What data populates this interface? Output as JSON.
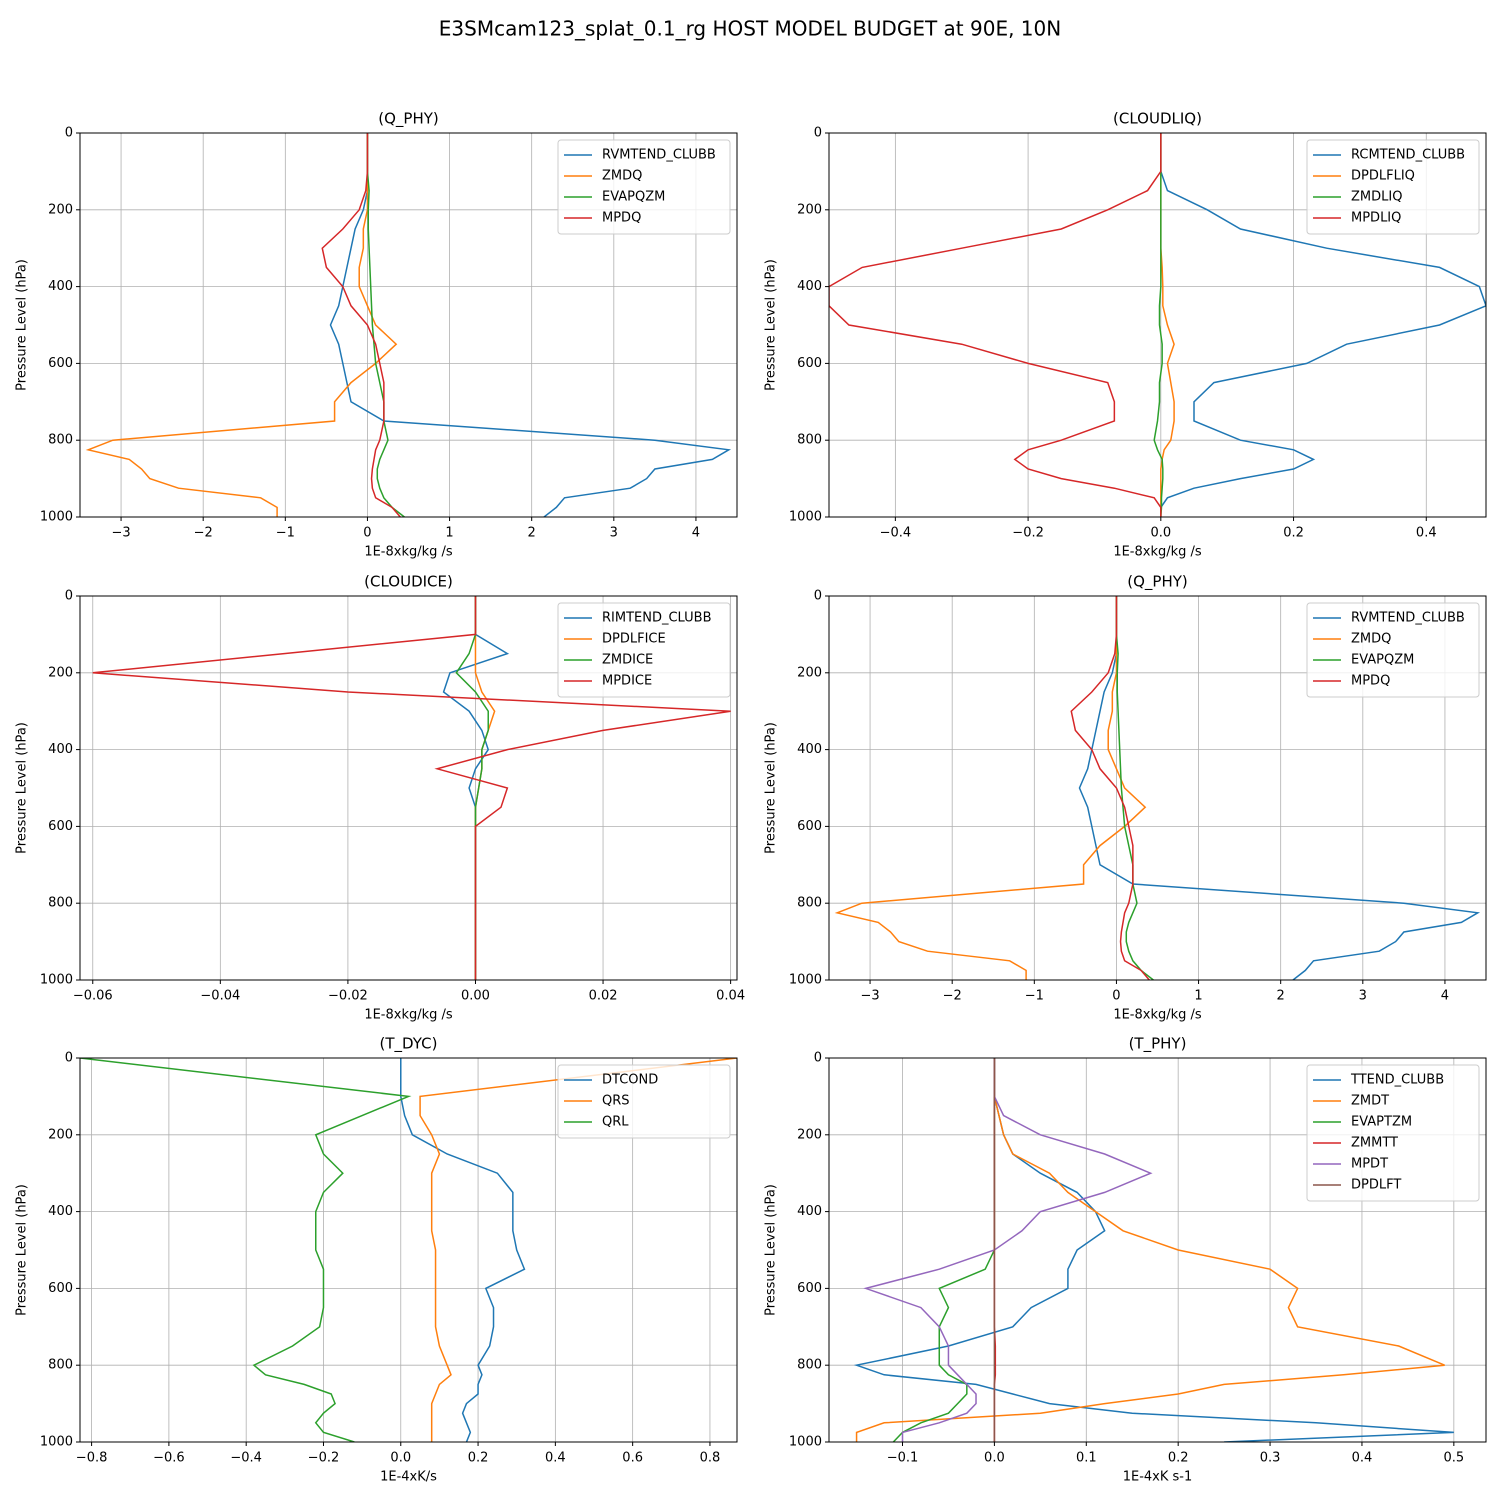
{
  "title": "E3SMcam123_splat_0.1_rg HOST MODEL BUDGET at 90E, 10N",
  "chart_data": [
    {
      "type": "line",
      "title": "(Q_PHY)",
      "xlabel": "1E-8xkg/kg /s",
      "ylabel": "Pressure Level (hPa)",
      "grid": true,
      "legend": "upper right",
      "y": [
        0,
        100,
        150,
        200,
        250,
        300,
        350,
        400,
        450,
        500,
        550,
        600,
        650,
        700,
        750,
        800,
        825,
        850,
        875,
        900,
        925,
        950,
        975,
        1000
      ],
      "ylim": [
        1000,
        0
      ],
      "yticks": [
        0,
        200,
        400,
        600,
        800,
        1000
      ],
      "xlim": [
        -3.5,
        4.5
      ],
      "xticks": [
        {
          "value": -3,
          "label": "−3"
        },
        {
          "value": -2,
          "label": "−2"
        },
        {
          "value": -1,
          "label": "−1"
        },
        0,
        1,
        2,
        3,
        4
      ],
      "series": [
        {
          "name": "RVMTEND_CLUBB",
          "color": "#1f77b4",
          "values": [
            0,
            0,
            0,
            -0.05,
            -0.15,
            -0.2,
            -0.25,
            -0.3,
            -0.35,
            -0.45,
            -0.35,
            -0.3,
            -0.25,
            -0.2,
            0.2,
            3.5,
            4.4,
            4.2,
            3.5,
            3.4,
            3.2,
            2.4,
            2.3,
            2.15
          ]
        },
        {
          "name": "ZMDQ",
          "color": "#ff7f0e",
          "values": [
            0,
            0,
            0,
            0,
            -0.05,
            -0.05,
            -0.1,
            -0.1,
            0,
            0.1,
            0.35,
            0.1,
            -0.2,
            -0.4,
            -0.4,
            -3.1,
            -3.4,
            -2.9,
            -2.75,
            -2.65,
            -2.3,
            -1.3,
            -1.1,
            -1.1
          ]
        },
        {
          "name": "EVAPQZM",
          "color": "#2ca02c",
          "values": [
            0,
            0,
            0.02,
            0.01,
            0.01,
            0.02,
            0.03,
            0.04,
            0.05,
            0.06,
            0.08,
            0.1,
            0.15,
            0.2,
            0.2,
            0.25,
            0.2,
            0.15,
            0.12,
            0.12,
            0.15,
            0.2,
            0.3,
            0.45
          ]
        },
        {
          "name": "MPDQ",
          "color": "#d62728",
          "values": [
            0,
            0,
            -0.02,
            -0.1,
            -0.3,
            -0.55,
            -0.5,
            -0.3,
            -0.2,
            0,
            0.1,
            0.15,
            0.2,
            0.2,
            0.2,
            0.15,
            0.1,
            0.08,
            0.06,
            0.05,
            0.06,
            0.1,
            0.3,
            0.4
          ]
        }
      ]
    },
    {
      "type": "line",
      "title": "(CLOUDLIQ)",
      "xlabel": "1E-8xkg/kg /s",
      "ylabel": "Pressure Level (hPa)",
      "grid": true,
      "legend": "upper right",
      "y": [
        0,
        100,
        150,
        200,
        250,
        300,
        350,
        400,
        450,
        500,
        550,
        600,
        650,
        700,
        750,
        800,
        825,
        850,
        875,
        900,
        925,
        950,
        975,
        1000
      ],
      "ylim": [
        1000,
        0
      ],
      "yticks": [
        0,
        200,
        400,
        600,
        800,
        1000
      ],
      "xlim": [
        -0.5,
        0.49
      ],
      "xticks": [
        {
          "value": -0.4,
          "label": "−0.4"
        },
        {
          "value": -0.2,
          "label": "−0.2"
        },
        {
          "value": 0,
          "label": "0.0"
        },
        0.2,
        0.4
      ],
      "series": [
        {
          "name": "RCMTEND_CLUBB",
          "color": "#1f77b4",
          "values": [
            0,
            0,
            0.01,
            0.07,
            0.12,
            0.25,
            0.42,
            0.48,
            0.49,
            0.42,
            0.28,
            0.22,
            0.08,
            0.05,
            0.05,
            0.12,
            0.2,
            0.23,
            0.2,
            0.12,
            0.05,
            0.01,
            0,
            0
          ]
        },
        {
          "name": "DPDLFLIQ",
          "color": "#ff7f0e",
          "values": [
            0,
            0,
            0,
            0,
            0,
            0,
            0.002,
            0.003,
            0.003,
            0.01,
            0.02,
            0.01,
            0.015,
            0.02,
            0.02,
            0.015,
            0.005,
            0.002,
            0,
            0,
            0,
            0,
            0,
            0
          ]
        },
        {
          "name": "ZMDLIQ",
          "color": "#2ca02c",
          "values": [
            0,
            0,
            0,
            0,
            0,
            0,
            0,
            0,
            -0.002,
            -0.002,
            0.002,
            0.002,
            -0.002,
            -0.002,
            -0.005,
            -0.01,
            -0.005,
            0.002,
            0.003,
            0.003,
            0.002,
            0.001,
            0.001,
            0
          ]
        },
        {
          "name": "MPDLIQ",
          "color": "#d62728",
          "values": [
            0,
            0,
            -0.02,
            -0.08,
            -0.15,
            -0.3,
            -0.45,
            -0.5,
            -0.5,
            -0.47,
            -0.3,
            -0.2,
            -0.08,
            -0.07,
            -0.07,
            -0.15,
            -0.2,
            -0.22,
            -0.2,
            -0.15,
            -0.07,
            -0.01,
            0,
            0
          ]
        }
      ]
    },
    {
      "type": "line",
      "title": "(CLOUDICE)",
      "xlabel": "1E-8xkg/kg /s",
      "ylabel": "Pressure Level (hPa)",
      "grid": true,
      "legend": "upper right",
      "y": [
        0,
        100,
        150,
        200,
        250,
        300,
        350,
        400,
        450,
        500,
        550,
        600,
        650,
        700,
        750,
        800,
        825,
        850,
        875,
        900,
        925,
        950,
        975,
        1000
      ],
      "ylim": [
        1000,
        0
      ],
      "yticks": [
        0,
        200,
        400,
        600,
        800,
        1000
      ],
      "xlim": [
        -0.062,
        0.041
      ],
      "xticks": [
        {
          "value": -0.06,
          "label": "−0.06"
        },
        {
          "value": -0.04,
          "label": "−0.04"
        },
        {
          "value": -0.02,
          "label": "−0.02"
        },
        {
          "value": 0,
          "label": "0.00"
        },
        0.02,
        0.04
      ],
      "series": [
        {
          "name": "RIMTEND_CLUBB",
          "color": "#1f77b4",
          "values": [
            0,
            0,
            0.005,
            -0.004,
            -0.005,
            -0.001,
            0.001,
            0.002,
            0,
            -0.001,
            0,
            0,
            0,
            0,
            0,
            0,
            0,
            0,
            0,
            0,
            0,
            0,
            0,
            0
          ]
        },
        {
          "name": "DPDLFICE",
          "color": "#ff7f0e",
          "values": [
            0,
            0,
            0,
            0,
            0.001,
            0.003,
            0.002,
            0.001,
            0.001,
            0.0005,
            0,
            0,
            0,
            0,
            0,
            0,
            0,
            0,
            0,
            0,
            0,
            0,
            0,
            0
          ]
        },
        {
          "name": "ZMDICE",
          "color": "#2ca02c",
          "values": [
            0,
            0,
            -0.001,
            -0.003,
            0,
            0.002,
            0.002,
            0.001,
            0.001,
            0.0005,
            0,
            0,
            0,
            0,
            0,
            0,
            0,
            0,
            0,
            0,
            0,
            0,
            0,
            0
          ]
        },
        {
          "name": "MPDICE",
          "color": "#d62728",
          "values": [
            0,
            0,
            -0.03,
            -0.06,
            -0.02,
            0.04,
            0.02,
            0.005,
            -0.006,
            0.005,
            0.004,
            0,
            0,
            0,
            0,
            0,
            0,
            0,
            0,
            0,
            0,
            0,
            0,
            0
          ]
        }
      ]
    },
    {
      "type": "line",
      "title": "(Q_PHY)",
      "xlabel": "1E-8xkg/kg /s",
      "ylabel": "Pressure Level (hPa)",
      "grid": true,
      "legend": "upper right",
      "y": [
        0,
        100,
        150,
        200,
        250,
        300,
        350,
        400,
        450,
        500,
        550,
        600,
        650,
        700,
        750,
        800,
        825,
        850,
        875,
        900,
        925,
        950,
        975,
        1000
      ],
      "ylim": [
        1000,
        0
      ],
      "yticks": [
        0,
        200,
        400,
        600,
        800,
        1000
      ],
      "xlim": [
        -3.5,
        4.5
      ],
      "xticks": [
        {
          "value": -3,
          "label": "−3"
        },
        {
          "value": -2,
          "label": "−2"
        },
        {
          "value": -1,
          "label": "−1"
        },
        0,
        1,
        2,
        3,
        4
      ],
      "series": [
        {
          "name": "RVMTEND_CLUBB",
          "color": "#1f77b4",
          "values": [
            0,
            0,
            0,
            -0.05,
            -0.15,
            -0.2,
            -0.25,
            -0.3,
            -0.35,
            -0.45,
            -0.35,
            -0.3,
            -0.25,
            -0.2,
            0.2,
            3.5,
            4.4,
            4.2,
            3.5,
            3.4,
            3.2,
            2.4,
            2.3,
            2.15
          ]
        },
        {
          "name": "ZMDQ",
          "color": "#ff7f0e",
          "values": [
            0,
            0,
            0,
            0,
            -0.05,
            -0.05,
            -0.1,
            -0.1,
            0,
            0.1,
            0.35,
            0.1,
            -0.2,
            -0.4,
            -0.4,
            -3.1,
            -3.4,
            -2.9,
            -2.75,
            -2.65,
            -2.3,
            -1.3,
            -1.1,
            -1.1
          ]
        },
        {
          "name": "EVAPQZM",
          "color": "#2ca02c",
          "values": [
            0,
            0,
            0.02,
            0.01,
            0.01,
            0.02,
            0.03,
            0.04,
            0.05,
            0.06,
            0.08,
            0.1,
            0.15,
            0.2,
            0.2,
            0.25,
            0.2,
            0.15,
            0.12,
            0.12,
            0.15,
            0.2,
            0.3,
            0.45
          ]
        },
        {
          "name": "MPDQ",
          "color": "#d62728",
          "values": [
            0,
            0,
            -0.02,
            -0.1,
            -0.3,
            -0.55,
            -0.5,
            -0.3,
            -0.2,
            0,
            0.1,
            0.15,
            0.2,
            0.2,
            0.2,
            0.15,
            0.1,
            0.08,
            0.06,
            0.05,
            0.06,
            0.1,
            0.3,
            0.4
          ]
        }
      ]
    },
    {
      "type": "line",
      "title": "(T_DYC)",
      "xlabel": "1E-4xK/s",
      "ylabel": "Pressure Level (hPa)",
      "grid": true,
      "legend": "upper right",
      "y": [
        0,
        100,
        150,
        200,
        250,
        300,
        350,
        400,
        450,
        500,
        550,
        600,
        650,
        700,
        750,
        800,
        825,
        850,
        875,
        900,
        925,
        950,
        975,
        1000
      ],
      "ylim": [
        1000,
        0
      ],
      "yticks": [
        0,
        200,
        400,
        600,
        800,
        1000
      ],
      "xlim": [
        -0.83,
        0.87
      ],
      "xticks": [
        {
          "value": -0.8,
          "label": "−0.8"
        },
        {
          "value": -0.6,
          "label": "−0.6"
        },
        {
          "value": -0.4,
          "label": "−0.4"
        },
        {
          "value": -0.2,
          "label": "−0.2"
        },
        {
          "value": 0,
          "label": "0.0"
        },
        0.2,
        0.4,
        0.6,
        0.8
      ],
      "series": [
        {
          "name": "DTCOND",
          "color": "#1f77b4",
          "values": [
            0,
            0,
            0.01,
            0.03,
            0.12,
            0.25,
            0.29,
            0.29,
            0.29,
            0.3,
            0.32,
            0.22,
            0.24,
            0.24,
            0.23,
            0.2,
            0.21,
            0.2,
            0.2,
            0.17,
            0.16,
            0.17,
            0.18,
            0.17
          ]
        },
        {
          "name": "QRS",
          "color": "#ff7f0e",
          "values": [
            0.87,
            0.05,
            0.05,
            0.08,
            0.1,
            0.08,
            0.08,
            0.08,
            0.08,
            0.09,
            0.09,
            0.09,
            0.09,
            0.09,
            0.1,
            0.12,
            0.13,
            0.1,
            0.09,
            0.08,
            0.08,
            0.08,
            0.08,
            0.08
          ]
        },
        {
          "name": "QRL",
          "color": "#2ca02c",
          "values": [
            -0.83,
            0.02,
            -0.1,
            -0.22,
            -0.2,
            -0.15,
            -0.2,
            -0.22,
            -0.22,
            -0.22,
            -0.2,
            -0.2,
            -0.2,
            -0.21,
            -0.28,
            -0.38,
            -0.35,
            -0.25,
            -0.18,
            -0.17,
            -0.2,
            -0.22,
            -0.2,
            -0.12
          ]
        }
      ]
    },
    {
      "type": "line",
      "title": "(T_PHY)",
      "xlabel": "1E-4xK s-1",
      "ylabel": "Pressure Level (hPa)",
      "grid": true,
      "legend": "upper right",
      "y": [
        0,
        100,
        150,
        200,
        250,
        300,
        350,
        400,
        450,
        500,
        550,
        600,
        650,
        700,
        750,
        800,
        825,
        850,
        875,
        900,
        925,
        950,
        975,
        1000
      ],
      "ylim": [
        1000,
        0
      ],
      "yticks": [
        0,
        200,
        400,
        600,
        800,
        1000
      ],
      "xlim": [
        -0.18,
        0.535
      ],
      "xticks": [
        {
          "value": -0.1,
          "label": "−0.1"
        },
        {
          "value": 0,
          "label": "0.0"
        },
        0.1,
        0.2,
        0.3,
        0.4,
        0.5
      ],
      "series": [
        {
          "name": "TTEND_CLUBB",
          "color": "#1f77b4",
          "values": [
            0,
            0,
            0.005,
            0.01,
            0.02,
            0.05,
            0.09,
            0.11,
            0.12,
            0.09,
            0.08,
            0.08,
            0.04,
            0.02,
            -0.05,
            -0.15,
            -0.12,
            -0.02,
            0.02,
            0.06,
            0.15,
            0.35,
            0.5,
            0.25
          ]
        },
        {
          "name": "ZMDT",
          "color": "#ff7f0e",
          "values": [
            0,
            0,
            0.005,
            0.01,
            0.02,
            0.06,
            0.08,
            0.11,
            0.14,
            0.2,
            0.3,
            0.33,
            0.32,
            0.33,
            0.44,
            0.49,
            0.38,
            0.25,
            0.2,
            0.12,
            0.05,
            -0.12,
            -0.15,
            -0.15
          ]
        },
        {
          "name": "EVAPTZM",
          "color": "#2ca02c",
          "values": [
            0,
            0,
            0,
            0,
            0,
            0,
            0,
            0,
            0,
            0,
            -0.01,
            -0.06,
            -0.05,
            -0.06,
            -0.06,
            -0.06,
            -0.05,
            -0.03,
            -0.03,
            -0.04,
            -0.05,
            -0.08,
            -0.1,
            -0.11
          ]
        },
        {
          "name": "ZMMTT",
          "color": "#d62728",
          "values": [
            0,
            0,
            0,
            0,
            0,
            0,
            0,
            0,
            0,
            0,
            0,
            0,
            0,
            0,
            0.001,
            0.001,
            0.001,
            0,
            0,
            0,
            0,
            0,
            0,
            0
          ]
        },
        {
          "name": "MPDT",
          "color": "#9467bd",
          "values": [
            0,
            0,
            0.01,
            0.05,
            0.12,
            0.17,
            0.12,
            0.05,
            0.03,
            0,
            -0.06,
            -0.14,
            -0.08,
            -0.06,
            -0.05,
            -0.05,
            -0.04,
            -0.03,
            -0.02,
            -0.02,
            -0.03,
            -0.06,
            -0.1,
            -0.1
          ]
        },
        {
          "name": "DPDLFT",
          "color": "#8c564b",
          "values": [
            0,
            0,
            0,
            0,
            0,
            0,
            0,
            0,
            0,
            0,
            0,
            0,
            0,
            0,
            0,
            0,
            0,
            0,
            0,
            0,
            0,
            0,
            0,
            0
          ]
        }
      ]
    }
  ]
}
